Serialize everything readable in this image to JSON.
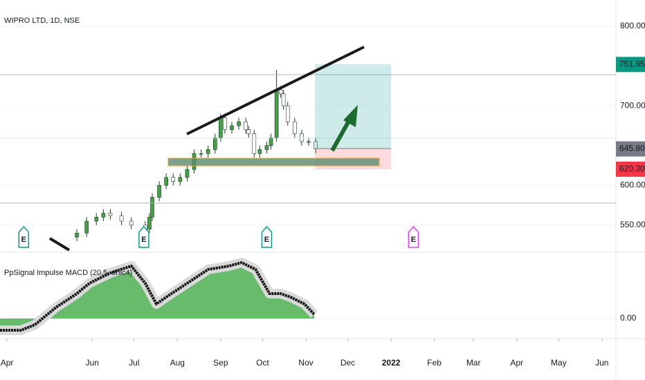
{
  "chart_data": [
    {
      "type": "candlestick",
      "title": "WIPRO LTD, 1D, NSE",
      "x": [
        50,
        57,
        64,
        69,
        74,
        82,
        89,
        99,
        102,
        104,
        109,
        114,
        119,
        124,
        129,
        134,
        139,
        144,
        149,
        153,
        156,
        161,
        166,
        171,
        173,
        177,
        181,
        186,
        189,
        193,
        196,
        198,
        201,
        206,
        211,
        216,
        221
      ],
      "open": [
        535,
        540,
        555,
        560,
        565,
        562,
        555,
        550,
        545,
        560,
        585,
        600,
        610,
        605,
        610,
        620,
        640,
        640,
        645,
        660,
        685,
        670,
        675,
        680,
        670,
        665,
        640,
        645,
        650,
        660,
        720,
        715,
        700,
        680,
        665,
        655,
        655
      ],
      "high": [
        545,
        560,
        565,
        570,
        570,
        567,
        560,
        555,
        565,
        590,
        605,
        615,
        615,
        615,
        625,
        645,
        645,
        650,
        665,
        690,
        690,
        680,
        685,
        685,
        675,
        670,
        650,
        655,
        665,
        745,
        725,
        720,
        705,
        685,
        670,
        660,
        660
      ],
      "low": [
        530,
        535,
        550,
        555,
        557,
        550,
        545,
        540,
        540,
        555,
        580,
        595,
        600,
        600,
        605,
        615,
        635,
        635,
        640,
        655,
        665,
        665,
        670,
        665,
        660,
        635,
        635,
        640,
        645,
        655,
        710,
        695,
        675,
        660,
        650,
        650,
        640
      ],
      "close": [
        540,
        555,
        560,
        565,
        562,
        555,
        550,
        545,
        560,
        585,
        600,
        610,
        605,
        610,
        620,
        640,
        640,
        645,
        660,
        685,
        670,
        675,
        680,
        670,
        665,
        640,
        645,
        650,
        660,
        720,
        715,
        700,
        680,
        665,
        655,
        655,
        646
      ],
      "up_color": "#43a047",
      "down_color": "#ffffff",
      "ylim": [
        516,
        833
      ],
      "yticks": [
        {
          "value": 800,
          "label": "800.00"
        },
        {
          "value": 700,
          "label": "700.00"
        },
        {
          "value": 600,
          "label": "600.00"
        },
        {
          "value": 550,
          "label": "550.00"
        }
      ],
      "price_labels": [
        {
          "value": 751.95,
          "label": "751.95",
          "color": "#089981"
        },
        {
          "value": 645.8,
          "label": "645.80",
          "color": "#787b86"
        },
        {
          "value": 620.3,
          "label": "620.30",
          "color": "#f23645"
        }
      ],
      "xlim": [
        -5,
        436
      ],
      "xticks": [
        {
          "value": 0,
          "label": "Apr"
        },
        {
          "value": 61,
          "label": "Jun"
        },
        {
          "value": 91,
          "label": "Jul"
        },
        {
          "value": 122,
          "label": "Aug"
        },
        {
          "value": 153,
          "label": "Sep"
        },
        {
          "value": 183,
          "label": "Oct"
        },
        {
          "value": 214,
          "label": "Nov"
        },
        {
          "value": 244,
          "label": "Dec"
        },
        {
          "value": 275,
          "label": "2022"
        },
        {
          "value": 306,
          "label": "Feb"
        },
        {
          "value": 334,
          "label": "Mar"
        },
        {
          "value": 365,
          "label": "Apr"
        },
        {
          "value": 395,
          "label": "May"
        },
        {
          "value": 426,
          "label": "Jun"
        }
      ],
      "events": {
        "x": [
          12,
          98,
          186,
          291
        ],
        "labels": [
          "E",
          "E",
          "E",
          "E"
        ],
        "colors": [
          "#089981",
          "#089981",
          "#089981",
          "#e040fb"
        ]
      }
    },
    {
      "type": "area",
      "title": "PpSignal Impulse MACD (20,5, ohlc4)",
      "x": [
        -5,
        10,
        20,
        35,
        50,
        59,
        74,
        89,
        99,
        107,
        114,
        129,
        144,
        159,
        168,
        178,
        188,
        196,
        203,
        213,
        220
      ],
      "values": [
        -4.25,
        -4.25,
        -2.25,
        4,
        9,
        12.75,
        16.5,
        19,
        12.75,
        5.25,
        7.75,
        12.75,
        17.75,
        19,
        20.25,
        17.75,
        9,
        9,
        7.75,
        5.25,
        1.5
      ],
      "color": "#4caf50",
      "line_color": "#111111",
      "xlim": [
        -5,
        436
      ],
      "ylim": [
        -7.25,
        23.5
      ],
      "yticks": [
        {
          "value": 0,
          "label": "0.00"
        }
      ]
    }
  ]
}
